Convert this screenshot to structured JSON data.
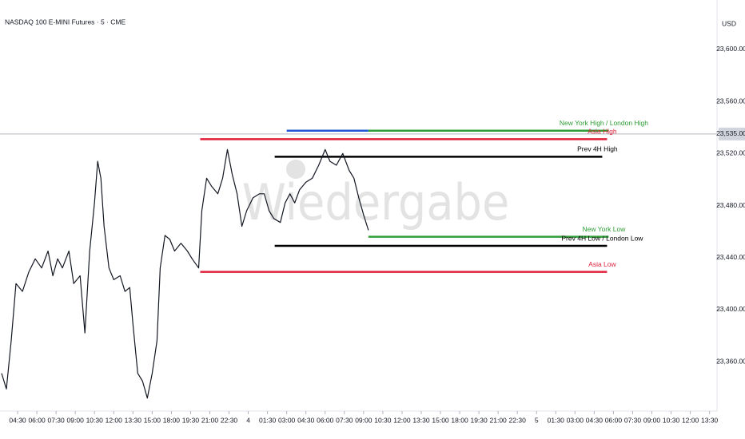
{
  "chart_data": {
    "type": "line",
    "title": "NASDAQ 100 E-MINI Futures · 5 · CME",
    "currency": "USD",
    "watermark": "Wiedergabe",
    "xlim": [
      -16.5,
      655
    ],
    "xticks": [
      {
        "value": 0,
        "label": "04:30"
      },
      {
        "value": 18,
        "label": "06:00"
      },
      {
        "value": 36,
        "label": "07:30"
      },
      {
        "value": 54,
        "label": "09:00"
      },
      {
        "value": 72,
        "label": "10:30"
      },
      {
        "value": 90,
        "label": "12:00"
      },
      {
        "value": 108,
        "label": "13:30"
      },
      {
        "value": 126,
        "label": "15:00"
      },
      {
        "value": 144,
        "label": "18:00"
      },
      {
        "value": 162,
        "label": "19:30"
      },
      {
        "value": 180,
        "label": "21:00"
      },
      {
        "value": 198,
        "label": "22:30"
      },
      {
        "value": 216,
        "label": "4"
      },
      {
        "value": 234,
        "label": "01:30"
      },
      {
        "value": 252,
        "label": "03:00"
      },
      {
        "value": 270,
        "label": "04:30"
      },
      {
        "value": 288,
        "label": "06:00"
      },
      {
        "value": 306,
        "label": "07:30"
      },
      {
        "value": 324,
        "label": "09:00"
      },
      {
        "value": 342,
        "label": "10:30"
      },
      {
        "value": 360,
        "label": "12:00"
      },
      {
        "value": 378,
        "label": "13:30"
      },
      {
        "value": 396,
        "label": "15:00"
      },
      {
        "value": 414,
        "label": "18:00"
      },
      {
        "value": 432,
        "label": "19:30"
      },
      {
        "value": 450,
        "label": "21:00"
      },
      {
        "value": 468,
        "label": "22:30"
      },
      {
        "value": 486,
        "label": "5"
      },
      {
        "value": 504,
        "label": "01:30"
      },
      {
        "value": 522,
        "label": "03:00"
      },
      {
        "value": 540,
        "label": "04:30"
      },
      {
        "value": 558,
        "label": "06:00"
      },
      {
        "value": 576,
        "label": "07:30"
      },
      {
        "value": 594,
        "label": "09:00"
      },
      {
        "value": 612,
        "label": "10:30"
      },
      {
        "value": 630,
        "label": "12:00"
      },
      {
        "value": 648,
        "label": "13:30"
      }
    ],
    "ylim": [
      23322,
      23638
    ],
    "yticks": [
      {
        "value": 23360,
        "label": "23,360.00"
      },
      {
        "value": 23400,
        "label": "23,400.00"
      },
      {
        "value": 23440,
        "label": "23,440.00"
      },
      {
        "value": 23480,
        "label": "23,480.00"
      },
      {
        "value": 23520,
        "label": "23,520.00"
      },
      {
        "value": 23560,
        "label": "23,560.00"
      },
      {
        "value": 23600,
        "label": "23,600.00"
      }
    ],
    "last_price": {
      "value": 23535,
      "label": "23,535.00"
    },
    "series": [
      {
        "color": "#131722",
        "x": [
          -15,
          -10.5,
          -6,
          -1.5,
          4.5,
          10.5,
          16.5,
          22.5,
          28.5,
          33,
          37.5,
          42,
          48,
          52.5,
          58.5,
          63,
          67.5,
          72,
          75,
          78,
          81,
          85.5,
          90,
          96,
          100.5,
          105,
          108,
          112.5,
          117,
          121.5,
          126,
          130.5,
          133.5,
          138,
          142.5,
          147,
          153,
          159,
          163.5,
          169.5,
          172.5,
          177,
          181.5,
          187.5,
          192,
          196.5,
          201,
          205.5,
          210,
          214.5,
          220.5,
          226.5,
          231,
          235.5,
          240,
          246,
          250.5,
          255,
          259.5,
          264,
          270,
          276,
          282,
          288,
          292.5,
          298.5,
          304.5,
          310.5,
          315,
          319.5,
          324,
          328.5
        ],
        "values": [
          23351,
          23339,
          23376,
          23420,
          23414,
          23429,
          23439,
          23432,
          23445,
          23426,
          23439,
          23432,
          23445,
          23420,
          23426,
          23382,
          23445,
          23482,
          23514,
          23501,
          23464,
          23432,
          23423,
          23426,
          23414,
          23417,
          23389,
          23351,
          23345,
          23332,
          23351,
          23376,
          23432,
          23457,
          23454,
          23445,
          23451,
          23445,
          23439,
          23432,
          23476,
          23501,
          23495,
          23489,
          23501,
          23523,
          23504,
          23489,
          23464,
          23476,
          23486,
          23489,
          23489,
          23476,
          23470,
          23467,
          23482,
          23489,
          23482,
          23492,
          23498,
          23501,
          23511,
          23523,
          23514,
          23511,
          23520,
          23507,
          23501,
          23486,
          23473,
          23461
        ]
      }
    ],
    "levels": [
      {
        "value": 23537.5,
        "start": 252,
        "end": 328.5,
        "color": "#2257d6"
      },
      {
        "name": "New York High / London High",
        "value": 23537.5,
        "start": 328.5,
        "end": 553.5,
        "color": "#2e9e35"
      },
      {
        "name": "Asia High",
        "value": 23531,
        "start": 171,
        "end": 552,
        "color": "#e0203a"
      },
      {
        "name": "Prev 4H High",
        "value": 23517.5,
        "start": 240.75,
        "end": 547.5,
        "color": "#000000"
      },
      {
        "name": "New York Low",
        "value": 23456,
        "start": 328.5,
        "end": 553.5,
        "color": "#2e9e35"
      },
      {
        "name": "Prev 4H Low / London Low",
        "value": 23449,
        "start": 240.75,
        "end": 552,
        "color": "#000000"
      },
      {
        "name": "Asia Low",
        "value": 23429,
        "start": 171,
        "end": 552,
        "color": "#e0203a"
      }
    ]
  }
}
